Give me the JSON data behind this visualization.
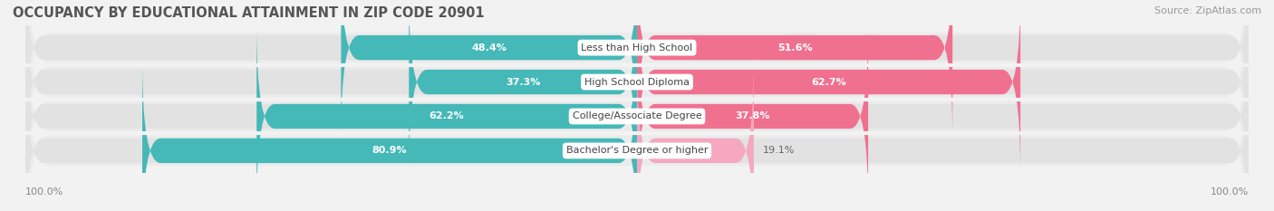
{
  "title": "OCCUPANCY BY EDUCATIONAL ATTAINMENT IN ZIP CODE 20901",
  "source": "Source: ZipAtlas.com",
  "categories": [
    "Less than High School",
    "High School Diploma",
    "College/Associate Degree",
    "Bachelor's Degree or higher"
  ],
  "owner_pct": [
    48.4,
    37.3,
    62.2,
    80.9
  ],
  "renter_pct": [
    51.6,
    62.7,
    37.8,
    19.1
  ],
  "owner_color": "#45b8b8",
  "renter_color": "#f07090",
  "renter_color_light": "#f5a8c0",
  "bg_color": "#f2f2f2",
  "bar_bg_color": "#e2e2e2",
  "row_bg_color": "#ebebeb",
  "title_fontsize": 10.5,
  "label_fontsize": 8,
  "tick_fontsize": 8,
  "source_fontsize": 8,
  "legend_fontsize": 8.5,
  "axis_label_left": "100.0%",
  "axis_label_right": "100.0%",
  "inside_label_threshold": 20
}
